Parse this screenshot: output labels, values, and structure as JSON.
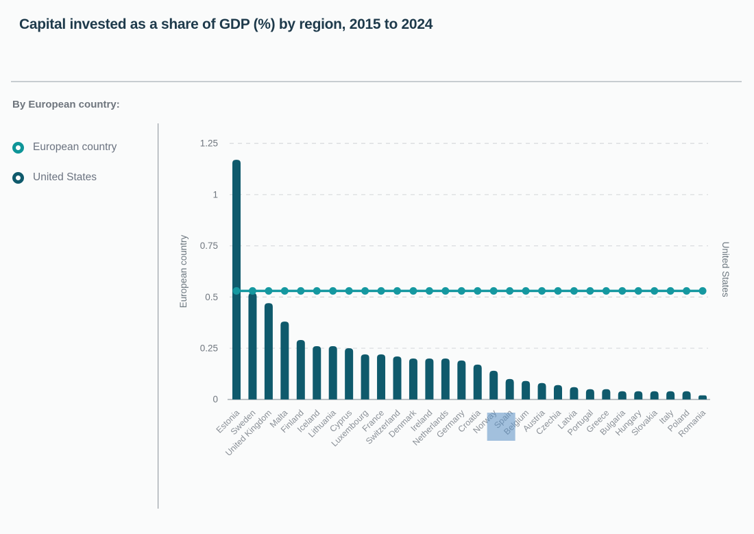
{
  "header": {
    "title": "Capital invested as a share of GDP (%) by region, 2015 to 2024"
  },
  "section_label": "By European country:",
  "legend": {
    "items": [
      {
        "label": "European country",
        "color": "#0e9598"
      },
      {
        "label": "United States",
        "color": "#0f5a6c"
      }
    ]
  },
  "colors": {
    "background": "#fafbfb",
    "title_text": "#1e3a4b",
    "muted_text": "#6e757d",
    "legend_text": "#6b7380",
    "tick_text": "#6f767e",
    "axis_title_text": "#6d7880",
    "x_label_text": "#8a9097",
    "bar": "#0f5a6c",
    "line": "#1598a0",
    "gridline": "#d9dcdf",
    "baseline": "#aab0b5",
    "divider": "#9aa1a7",
    "highlight": "#5a8fc4"
  },
  "chart_data": {
    "type": "bar",
    "title": "Capital invested as a share of GDP (%) by region, 2015 to 2024",
    "categories": [
      "Estonia",
      "Sweden",
      "United Kingdom",
      "Malta",
      "Finland",
      "Iceland",
      "Lithuania",
      "Cyprus",
      "Luxembourg",
      "France",
      "Switzerland",
      "Denmark",
      "Ireland",
      "Netherlands",
      "Germany",
      "Croatia",
      "Norway",
      "Spain",
      "Belgium",
      "Austria",
      "Czechia",
      "Latvia",
      "Portugal",
      "Greece",
      "Bulgaria",
      "Hungary",
      "Slovakia",
      "Italy",
      "Poland",
      "Romania"
    ],
    "series": [
      {
        "name": "European country",
        "type": "bar",
        "color": "#0f5a6c",
        "values": [
          1.17,
          0.52,
          0.47,
          0.38,
          0.29,
          0.26,
          0.26,
          0.25,
          0.22,
          0.22,
          0.21,
          0.2,
          0.2,
          0.2,
          0.19,
          0.17,
          0.14,
          0.1,
          0.09,
          0.08,
          0.07,
          0.06,
          0.05,
          0.05,
          0.04,
          0.04,
          0.04,
          0.04,
          0.04,
          0.02
        ]
      },
      {
        "name": "United States",
        "type": "line",
        "color": "#1598a0",
        "value": 0.53
      }
    ],
    "ylabel_left": "European country",
    "ylabel_right": "United States",
    "yticks": [
      0,
      0.25,
      0.5,
      0.75,
      1,
      1.25
    ],
    "ylim": [
      0,
      1.25
    ],
    "grid": "horizontal-dashed",
    "legend_position": "left",
    "x_label_rotation": -45,
    "highlighted_category": "Spain",
    "highlight_color": "#5a8fc4"
  }
}
